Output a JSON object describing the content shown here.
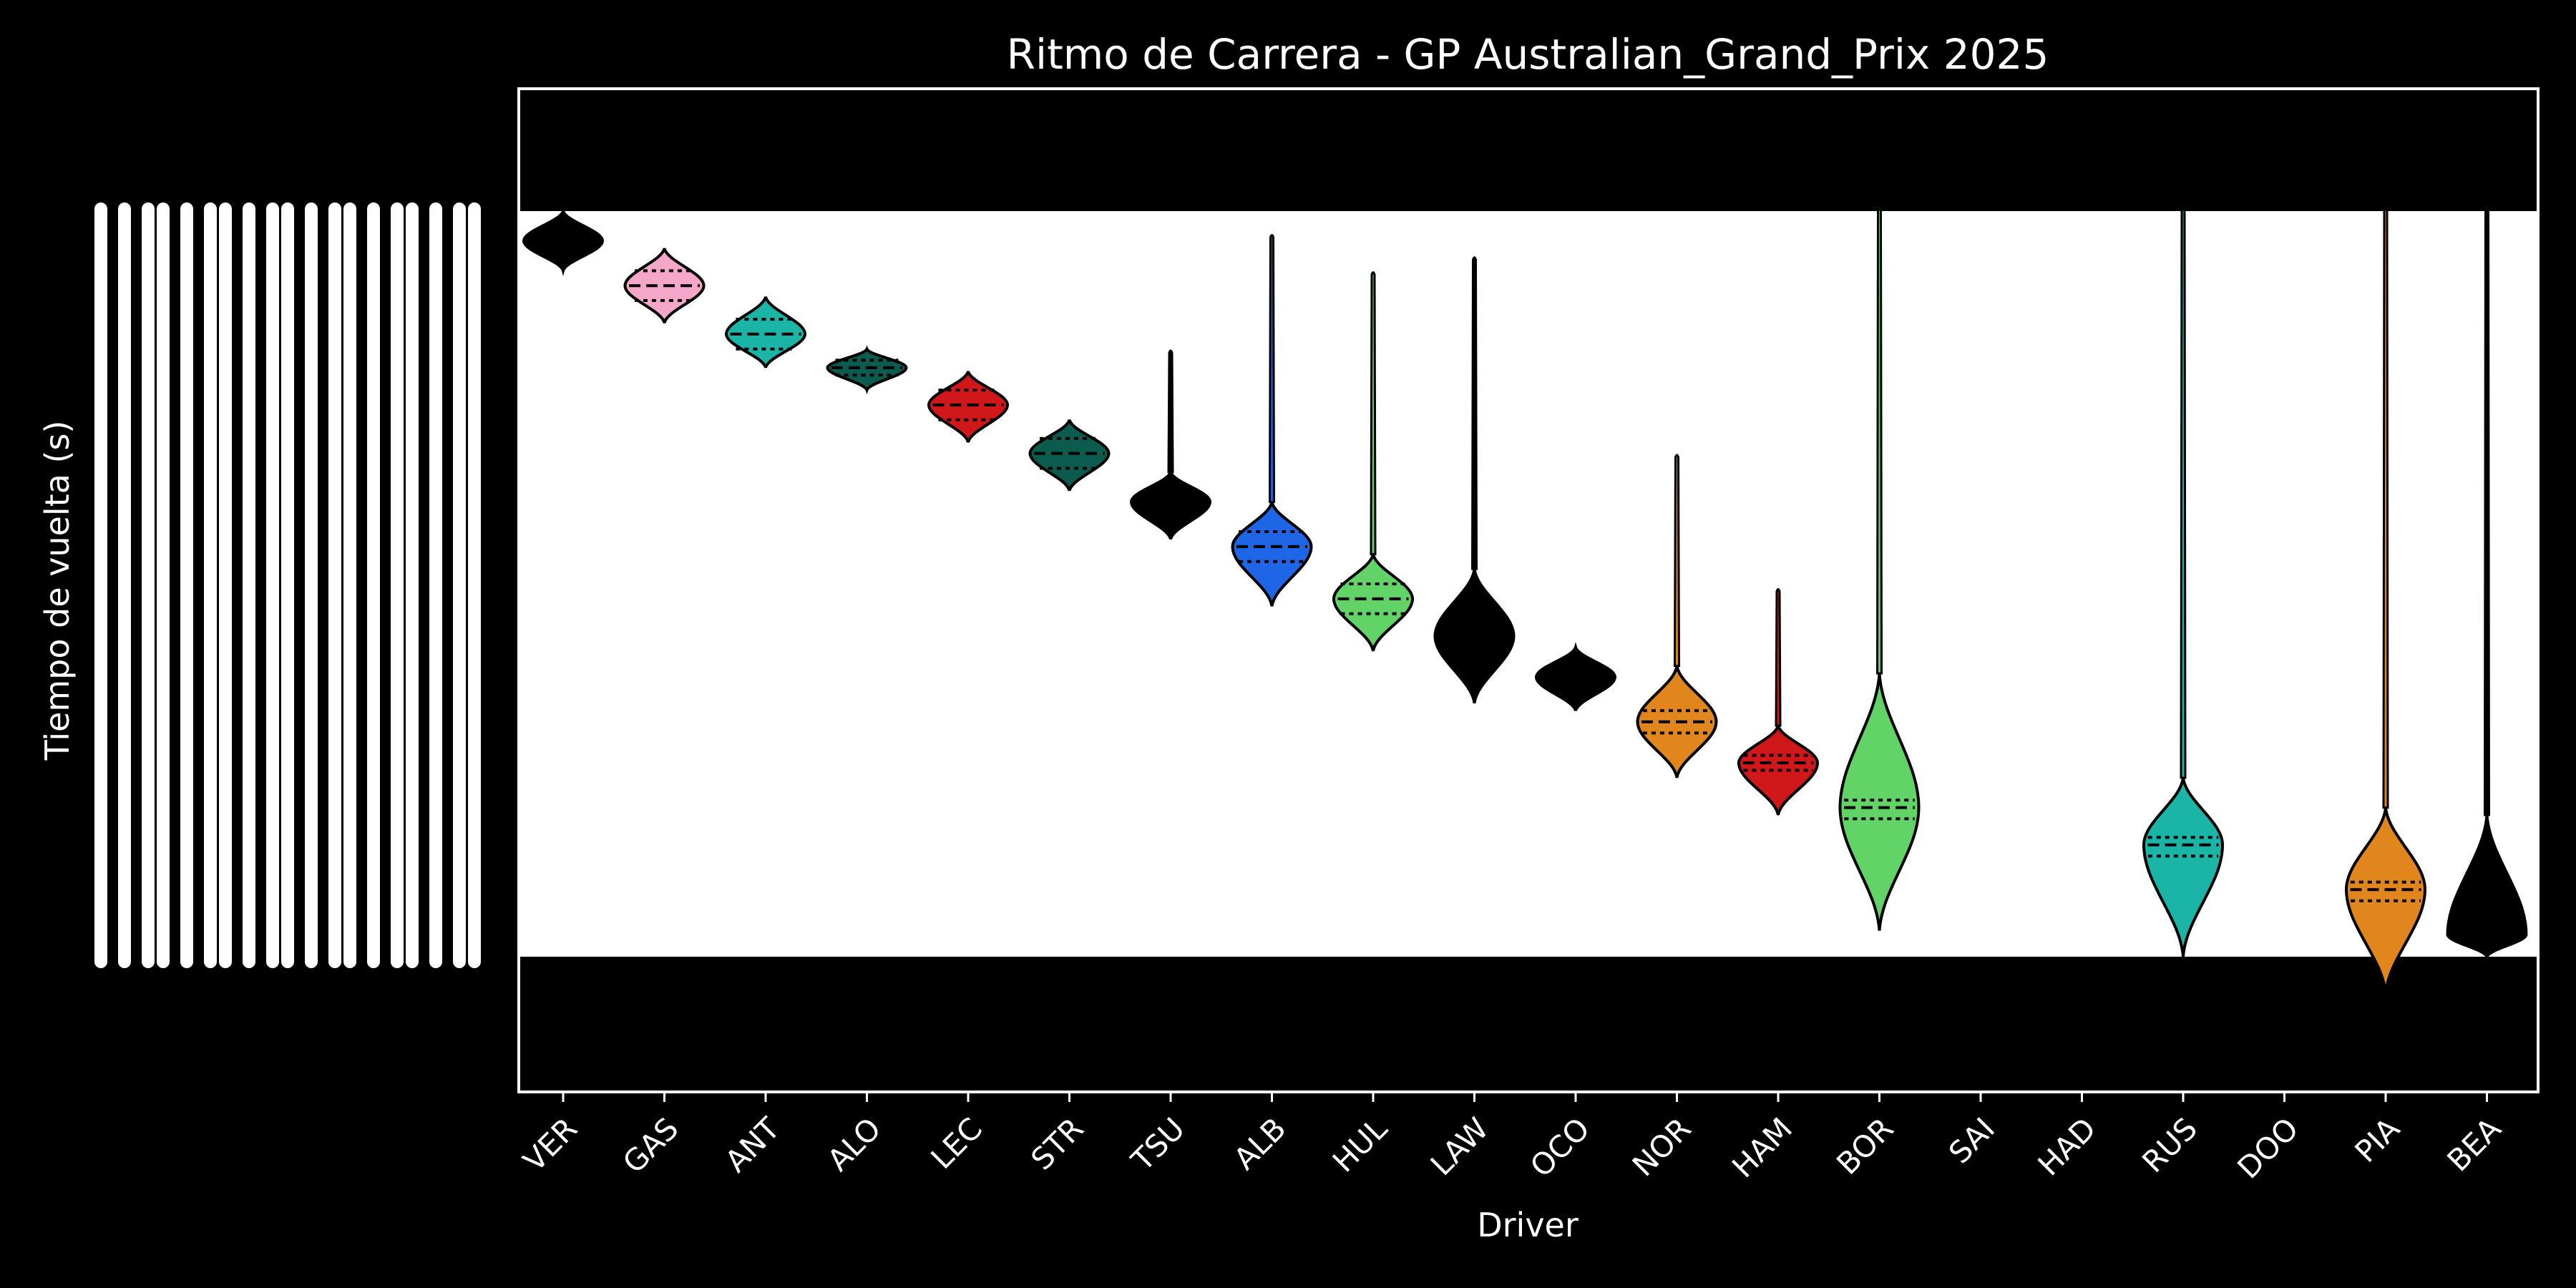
{
  "chart_data": {
    "type": "violin",
    "title": "Ritmo de Carrera - GP Australian_Grand_Prix 2025",
    "xlabel": "Driver",
    "ylabel": "Tiempo de vuelta (s)",
    "categories": [
      "VER",
      "GAS",
      "ANT",
      "ALO",
      "LEC",
      "STR",
      "TSU",
      "ALB",
      "HUL",
      "LAW",
      "OCO",
      "NOR",
      "HAM",
      "BOR",
      "SAI",
      "HAD",
      "RUS",
      "DOO",
      "PIA",
      "BEA"
    ],
    "ylim": [
      100,
      0
    ],
    "y_tick_labels_note": "y-axis tick labels rendered as overlapping illegible timedelta strings (\"days 00:01:...\")",
    "plot_background": "#ffffff",
    "outer_background": "#000000",
    "series": [
      {
        "driver": "VER",
        "color": "#000000",
        "median": 4,
        "q1": 2,
        "q3": 6,
        "min": 0,
        "max": 8,
        "tail_top": null,
        "tail_bottom": null,
        "quartile_lines": false
      },
      {
        "driver": "GAS",
        "color": "#f4a7c9",
        "median": 10,
        "q1": 8,
        "q3": 12,
        "min": 5,
        "max": 15,
        "tail_top": null,
        "tail_bottom": null,
        "quartile_lines": true
      },
      {
        "driver": "ANT",
        "color": "#1bb5a7",
        "median": 16.5,
        "q1": 14.5,
        "q3": 18.5,
        "min": 11.5,
        "max": 21,
        "tail_top": null,
        "tail_bottom": null,
        "quartile_lines": true
      },
      {
        "driver": "ALO",
        "color": "#0b5c4e",
        "median": 21,
        "q1": 20,
        "q3": 22,
        "min": 18.5,
        "max": 24,
        "tail_top": null,
        "tail_bottom": null,
        "quartile_lines": true
      },
      {
        "driver": "LEC",
        "color": "#d0181b",
        "median": 26,
        "q1": 24,
        "q3": 28,
        "min": 21.5,
        "max": 31,
        "tail_top": null,
        "tail_bottom": null,
        "quartile_lines": true
      },
      {
        "driver": "STR",
        "color": "#0b5c4e",
        "median": 32.5,
        "q1": 30.5,
        "q3": 34.5,
        "min": 28,
        "max": 37.5,
        "tail_top": null,
        "tail_bottom": null,
        "quartile_lines": true
      },
      {
        "driver": "TSU",
        "color": "#000000",
        "median": 39,
        "q1": 37,
        "q3": 41,
        "min": 35,
        "max": 44,
        "tail_top": 19,
        "tail_bottom": null,
        "quartile_lines": false
      },
      {
        "driver": "ALB",
        "color": "#1e66e6",
        "median": 45,
        "q1": 43,
        "q3": 47,
        "min": 39,
        "max": 53,
        "tail_top": 3.5,
        "tail_bottom": null,
        "quartile_lines": true
      },
      {
        "driver": "HUL",
        "color": "#62d366",
        "median": 52,
        "q1": 50,
        "q3": 54,
        "min": 46,
        "max": 59,
        "tail_top": 8.5,
        "tail_bottom": null,
        "quartile_lines": true
      },
      {
        "driver": "LAW",
        "color": "#000000",
        "median": 57,
        "q1": 55,
        "q3": 59,
        "min": 48,
        "max": 66,
        "tail_top": 6.5,
        "tail_bottom": null,
        "quartile_lines": false
      },
      {
        "driver": "OCO",
        "color": "#000000",
        "median": 62.5,
        "q1": 61.5,
        "q3": 63.5,
        "min": 58.5,
        "max": 67,
        "tail_top": null,
        "tail_bottom": null,
        "quartile_lines": false
      },
      {
        "driver": "NOR",
        "color": "#e1861c",
        "median": 68.5,
        "q1": 67,
        "q3": 70,
        "min": 61,
        "max": 76,
        "tail_top": 33,
        "tail_bottom": null,
        "quartile_lines": true
      },
      {
        "driver": "HAM",
        "color": "#d0181b",
        "median": 74,
        "q1": 73,
        "q3": 75,
        "min": 69,
        "max": 81,
        "tail_top": 51,
        "tail_bottom": null,
        "quartile_lines": true
      },
      {
        "driver": "BOR",
        "color": "#62d366",
        "median": 80,
        "q1": 79,
        "q3": 81.5,
        "min": 62,
        "max": 96.5,
        "tail_top": 0,
        "tail_bottom": null,
        "quartile_lines": true
      },
      {
        "driver": "SAI",
        "color": "#000000",
        "median": null,
        "q1": null,
        "q3": null,
        "min": null,
        "max": null,
        "tail_top": null,
        "tail_bottom": null,
        "quartile_lines": false
      },
      {
        "driver": "HAD",
        "color": "#000000",
        "median": null,
        "q1": null,
        "q3": null,
        "min": null,
        "max": null,
        "tail_top": null,
        "tail_bottom": null,
        "quartile_lines": false
      },
      {
        "driver": "RUS",
        "color": "#1bb5a7",
        "median": 85,
        "q1": 84,
        "q3": 86.5,
        "min": 76,
        "max": 100,
        "tail_top": 0,
        "tail_bottom": null,
        "quartile_lines": true
      },
      {
        "driver": "DOO",
        "color": "#000000",
        "median": null,
        "q1": null,
        "q3": null,
        "min": null,
        "max": null,
        "tail_top": null,
        "tail_bottom": null,
        "quartile_lines": false
      },
      {
        "driver": "PIA",
        "color": "#e1861c",
        "median": 91,
        "q1": 90,
        "q3": 92.5,
        "min": 80,
        "max": 105,
        "tail_top": 0,
        "tail_bottom": null,
        "quartile_lines": true
      },
      {
        "driver": "BEA",
        "color": "#000000",
        "median": 97,
        "q1": 95,
        "q3": 99,
        "min": 81,
        "max": 100,
        "tail_top": 0,
        "tail_bottom": null,
        "quartile_lines": false
      }
    ]
  }
}
